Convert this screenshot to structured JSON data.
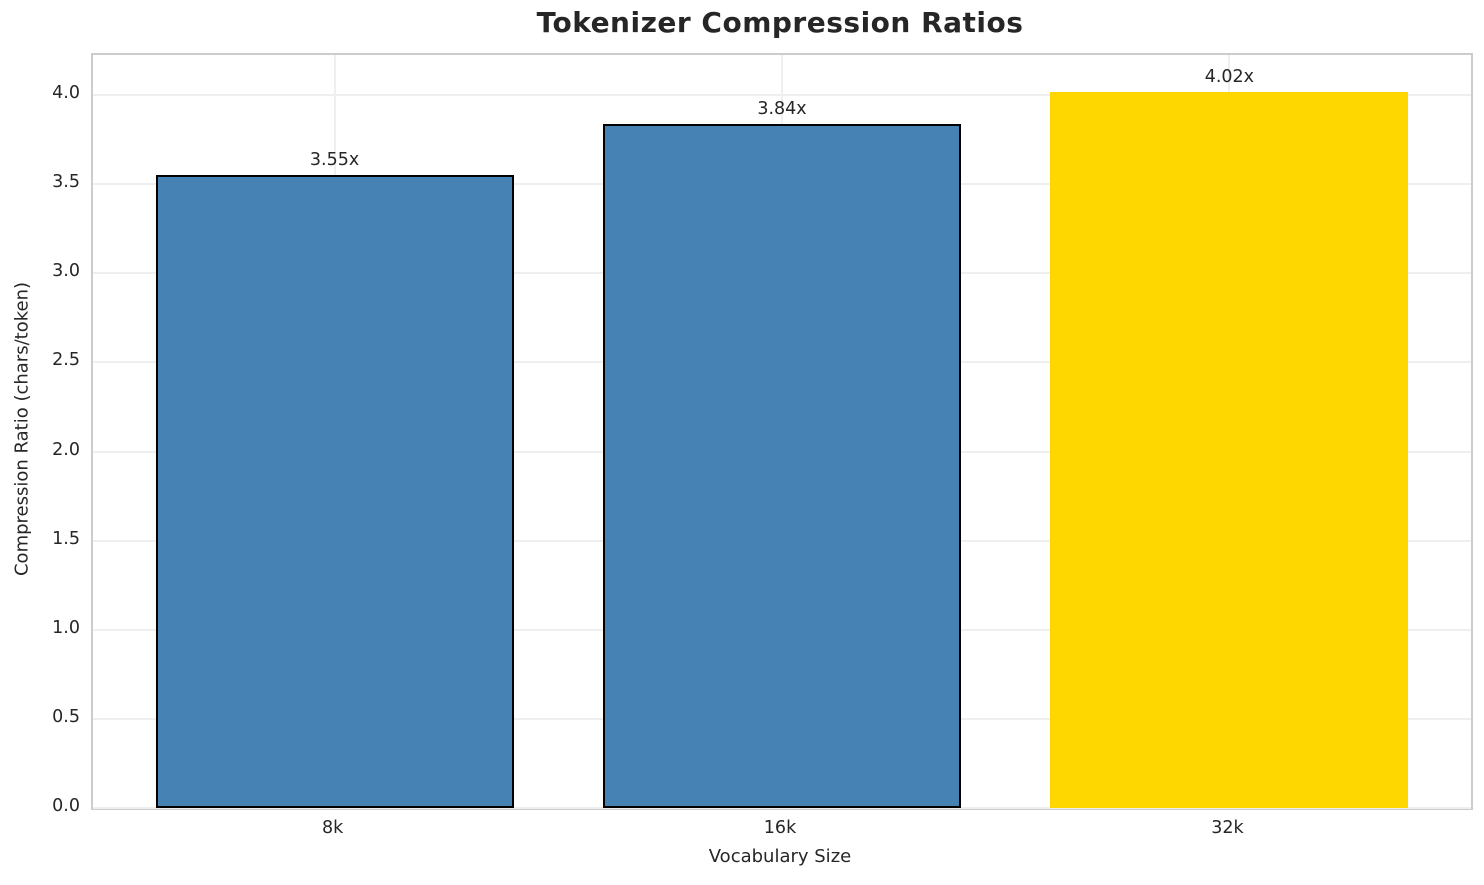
{
  "chart_data": {
    "type": "bar",
    "title": "Tokenizer Compression Ratios",
    "xlabel": "Vocabulary Size",
    "ylabel": "Compression Ratio (chars/token)",
    "categories": [
      "8k",
      "16k",
      "32k"
    ],
    "values": [
      3.55,
      3.84,
      4.02
    ],
    "bar_labels": [
      "3.55x",
      "3.84x",
      "4.02x"
    ],
    "yticks": [
      "0.0",
      "0.5",
      "1.0",
      "1.5",
      "2.0",
      "2.5",
      "3.0",
      "3.5",
      "4.0"
    ],
    "ytick_values": [
      0,
      0.5,
      1,
      1.5,
      2,
      2.5,
      3,
      3.5,
      4
    ],
    "ylim": [
      0,
      4.225
    ],
    "xlim": [
      -0.54,
      2.54
    ],
    "bar_width": 0.8,
    "grid": true,
    "legend": false,
    "colors": {
      "bar_fills": [
        "#4682B4",
        "#4682B4",
        "#FFD700"
      ],
      "bar_edges": [
        "#000000",
        "#000000",
        null
      ],
      "highlight_index": 2,
      "grid_line": "#efefef",
      "spine": "#cccccc",
      "text": "#262626",
      "background": "#ffffff"
    }
  }
}
